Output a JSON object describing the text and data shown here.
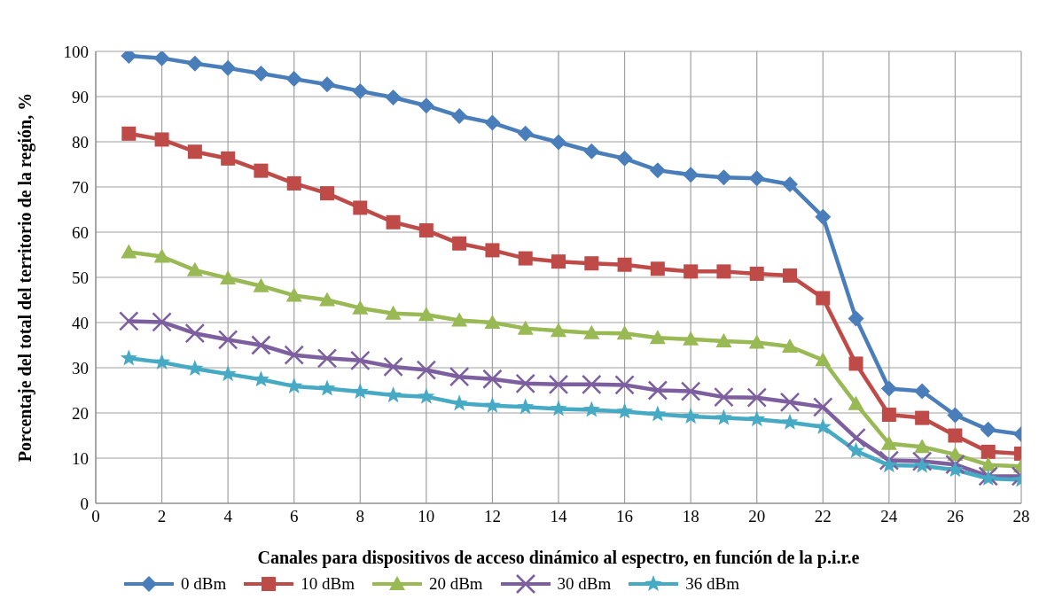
{
  "chart_data": {
    "type": "line",
    "xlabel": "Canales para dispositivos de acceso dinámico al espectro, en función de la p.i.r.e",
    "ylabel": "Porcentaje del total del territorio de la región, %",
    "x": [
      1,
      2,
      3,
      4,
      5,
      6,
      7,
      8,
      9,
      10,
      11,
      12,
      13,
      14,
      15,
      16,
      17,
      18,
      19,
      20,
      21,
      22,
      23,
      24,
      25,
      26,
      27,
      28
    ],
    "series": [
      {
        "name": "0 dBm",
        "color": "#4a7ebb",
        "marker": "diamond",
        "values": [
          99,
          98.5,
          97.3,
          96.3,
          95.1,
          93.9,
          92.7,
          91.2,
          89.8,
          88,
          85.7,
          84.2,
          81.8,
          79.9,
          77.9,
          76.3,
          73.7,
          72.7,
          72.1,
          71.9,
          70.6,
          63.4,
          40.9,
          25.4,
          24.8,
          19.5,
          16.3,
          15.3
        ]
      },
      {
        "name": "10 dBm",
        "color": "#be4b48",
        "marker": "square",
        "values": [
          81.8,
          80.5,
          77.8,
          76.3,
          73.6,
          70.8,
          68.6,
          65.4,
          62.2,
          60.4,
          57.5,
          56,
          54.2,
          53.5,
          53.1,
          52.8,
          51.9,
          51.3,
          51.3,
          50.8,
          50.4,
          45.4,
          30.9,
          19.6,
          18.9,
          15,
          11.4,
          11
        ]
      },
      {
        "name": "20 dBm",
        "color": "#98b954",
        "marker": "triangle",
        "values": [
          55.6,
          54.6,
          51.6,
          49.8,
          48.1,
          46,
          45,
          43.2,
          42,
          41.7,
          40.5,
          40,
          38.7,
          38.2,
          37.7,
          37.6,
          36.6,
          36.3,
          35.9,
          35.6,
          34.7,
          31.7,
          22,
          13.2,
          12.5,
          10.8,
          8.5,
          8.2
        ]
      },
      {
        "name": "30 dBm",
        "color": "#7d5fa0",
        "marker": "cross",
        "values": [
          40.3,
          40.1,
          37.6,
          36.2,
          35,
          32.8,
          32.1,
          31.6,
          30.2,
          29.5,
          28,
          27.5,
          26.5,
          26.3,
          26.3,
          26.2,
          25,
          24.8,
          23.5,
          23.4,
          22.4,
          21.3,
          14.5,
          9.5,
          9.3,
          8.6,
          6,
          6
        ]
      },
      {
        "name": "36 dBm",
        "color": "#46aac5",
        "marker": "star",
        "values": [
          32.1,
          31.2,
          29.8,
          28.6,
          27.4,
          25.9,
          25.4,
          24.7,
          23.9,
          23.6,
          22.1,
          21.6,
          21.3,
          20.9,
          20.7,
          20.3,
          19.7,
          19.2,
          18.9,
          18.6,
          17.9,
          16.9,
          11.6,
          8.4,
          8.3,
          7.4,
          5.5,
          5.2
        ]
      }
    ],
    "xlim": [
      0,
      28
    ],
    "xticks": [
      0,
      2,
      4,
      6,
      8,
      10,
      12,
      14,
      16,
      18,
      20,
      22,
      24,
      26,
      28
    ],
    "ylim": [
      0,
      100
    ],
    "yticks": [
      0,
      10,
      20,
      30,
      40,
      50,
      60,
      70,
      80,
      90,
      100
    ],
    "grid": true,
    "legend": "bottom",
    "line_style": "solid"
  }
}
